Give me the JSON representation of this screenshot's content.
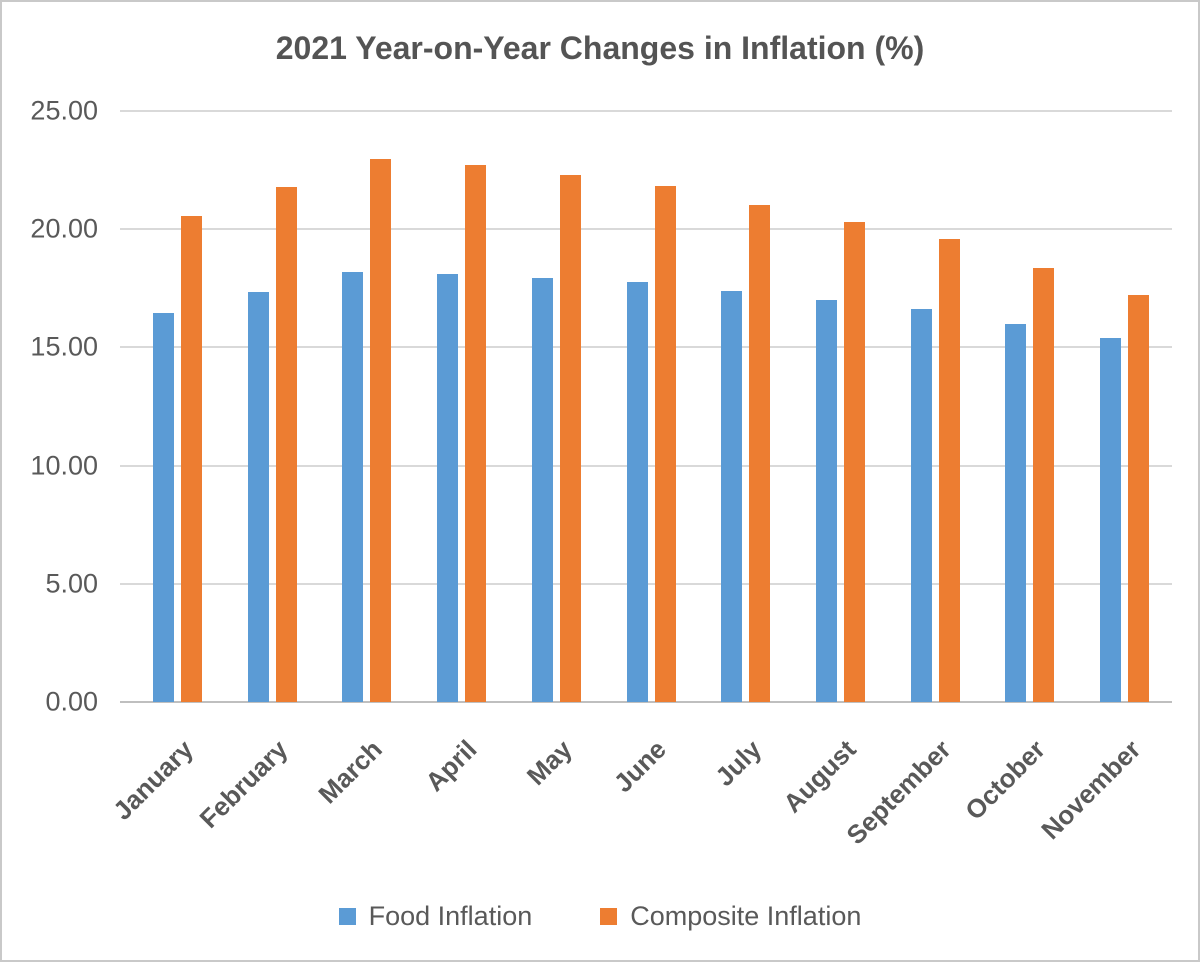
{
  "chart_data": {
    "type": "bar",
    "title": "2021 Year-on-Year Changes in Inflation (%)",
    "categories": [
      "January",
      "February",
      "March",
      "April",
      "May",
      "June",
      "July",
      "August",
      "September",
      "October",
      "November"
    ],
    "series": [
      {
        "name": "Food Inflation",
        "color": "#5B9BD5",
        "values": [
          16.47,
          17.33,
          18.17,
          18.12,
          17.93,
          17.75,
          17.38,
          17.01,
          16.63,
          15.99,
          15.4
        ]
      },
      {
        "name": "Composite Inflation",
        "color": "#ED7D31",
        "values": [
          20.57,
          21.79,
          22.95,
          22.72,
          22.28,
          21.83,
          21.03,
          20.3,
          19.57,
          18.34,
          17.21
        ]
      }
    ],
    "y_axis": {
      "min": 0,
      "max": 25,
      "step": 5,
      "tick_labels": [
        "0.00",
        "5.00",
        "10.00",
        "15.00",
        "20.00",
        "25.00"
      ]
    },
    "x_label_rotation_deg": -45,
    "legend_position": "bottom",
    "grid": true,
    "colors": {
      "grid_line": "#d9d9d9",
      "axis_line": "#bfbfbf",
      "text": "#595959",
      "title": "#545454",
      "border": "#c9c9c9",
      "background": "#ffffff"
    }
  }
}
